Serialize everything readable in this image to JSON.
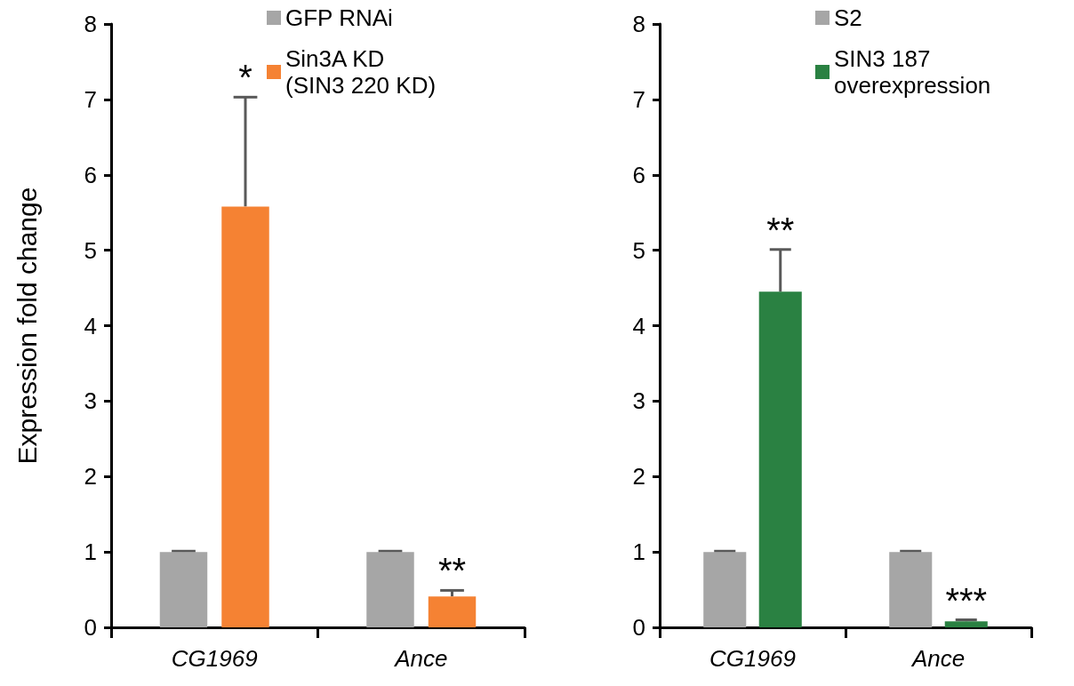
{
  "chart_data": [
    {
      "type": "bar",
      "ylabel": "Expression fold change",
      "categories": [
        "CG1969",
        "Ance"
      ],
      "series": [
        {
          "name": "GFP RNAi",
          "color": "#a6a6a6",
          "values": [
            1.0,
            1.0
          ],
          "errors": [
            0.01,
            0.01
          ]
        },
        {
          "name": "Sin3A KD\n(SIN3 220 KD)",
          "color": "#f58233",
          "values": [
            5.58,
            0.41
          ],
          "errors": [
            1.45,
            0.08
          ]
        }
      ],
      "ylim": [
        0,
        8
      ],
      "yticks": [
        0,
        1,
        2,
        3,
        4,
        5,
        6,
        7,
        8
      ],
      "grid": false,
      "legend": "top right",
      "annotations": [
        "*",
        "**"
      ]
    },
    {
      "type": "bar",
      "categories": [
        "CG1969",
        "Ance"
      ],
      "series": [
        {
          "name": "S2",
          "color": "#a6a6a6",
          "values": [
            1.0,
            1.0
          ],
          "errors": [
            0.01,
            0.01
          ]
        },
        {
          "name": "SIN3 187\noverexpression",
          "color": "#2a8142",
          "values": [
            4.45,
            0.08
          ],
          "errors": [
            0.56,
            0.02
          ]
        }
      ],
      "ylim": [
        0,
        8
      ],
      "yticks": [
        0,
        1,
        2,
        3,
        4,
        5,
        6,
        7,
        8
      ],
      "grid": false,
      "legend": "top right",
      "annotations": [
        "**",
        "***"
      ]
    }
  ]
}
